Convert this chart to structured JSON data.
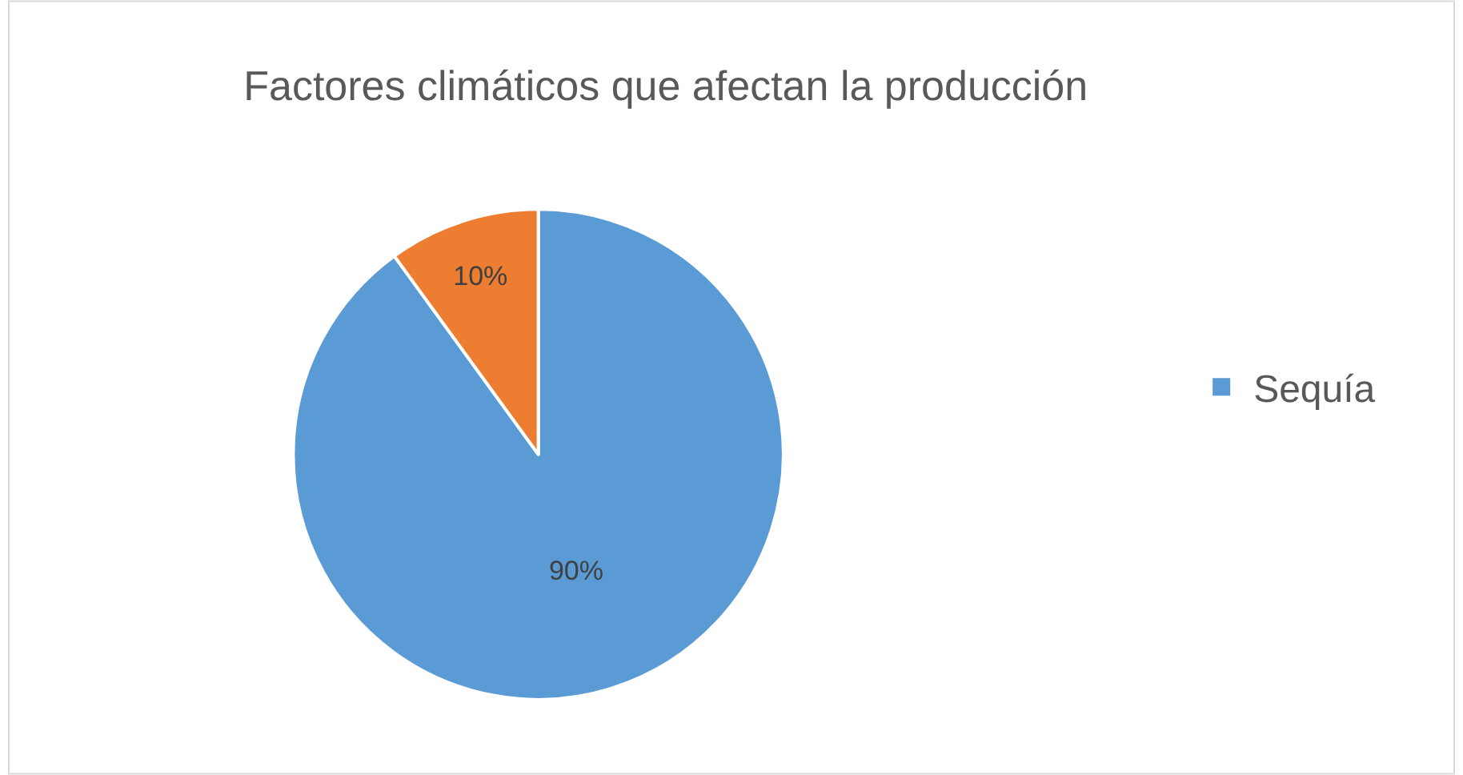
{
  "chart_data": {
    "type": "pie",
    "title": "Factores climáticos que afectan la producción",
    "categories": [
      "Sequía",
      null
    ],
    "values": [
      90,
      10
    ],
    "colors": [
      "#5b9bd5",
      "#ed7d31"
    ],
    "value_labels": [
      "90%",
      "10%"
    ],
    "legend": "right"
  }
}
